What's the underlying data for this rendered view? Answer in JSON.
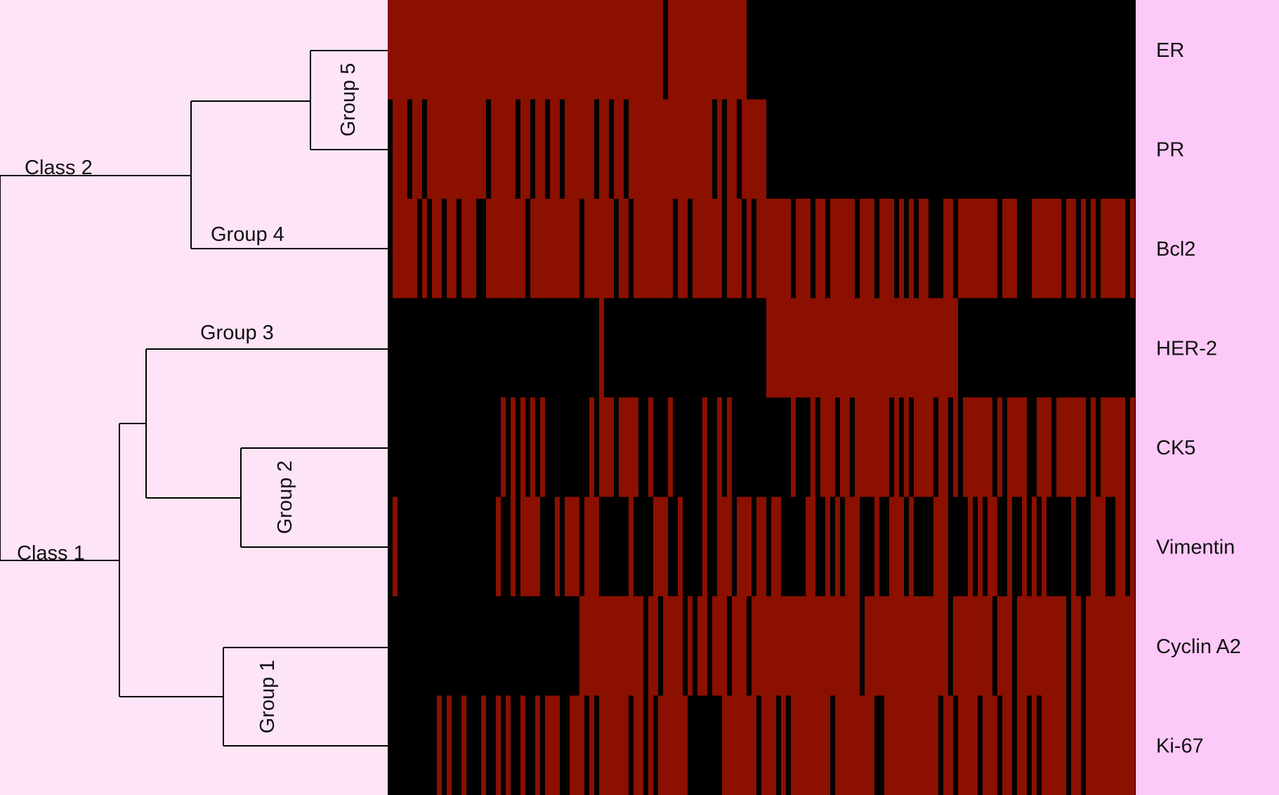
{
  "chart_data": {
    "type": "heatmap",
    "title": "",
    "xlabel": "",
    "ylabel": "",
    "rows": [
      "ER",
      "PR",
      "Bcl2",
      "HER-2",
      "CK5",
      "Vimentin",
      "Cyclin A2",
      "Ki-67"
    ],
    "n_samples": 152,
    "value_colors": {
      "0": "#000000",
      "1": "#8b1000"
    },
    "legend": "none",
    "grid": false,
    "values": [
      "11111111111111111111111111111111111111111111111111111111011111111111111110000000000000000000000000000000000000000000000000000000000000000000000000000000",
      "01110110111111111111011111011011011011111101101101111111111111111101011011111000000000000000000000000000000000000000000000000000000000000000000000000000",
      "01111101011011011100111111110111111111101111110110111111110110111111011101011111110111011011111011101110101011000110111111110111000111111011010101111101",
      "00000000000000000000000000000000000000000001000000000000000000000000000000000111111111111111111111111111111111111111000000000000000000000000000000000000",
      "00000000000000000000000101010101000000000101110111100100010000001001010000000000001000101110110111111101010111101101011111101011110011101111110101111101",
      "01000000000000000000001001011110001011101110000001000011100100001001110111011011000001100101011100010011101000011100001010110010010101000001000111001101",
      "00000000000000000000000000000000000000011111111111110110111101011011101110111111111111111111111101111111111111111101111111101110111111111101101111111111",
      "00000000001010010001001010010010111001110101111110110101111110000000111111101110101111111101111111100111111111110110111101110110110101111101101111111111"
    ],
    "dendrogram": {
      "classes": [
        "Class 1",
        "Class 2"
      ],
      "groups": [
        "Group 1",
        "Group 2",
        "Group 3",
        "Group 4",
        "Group 5"
      ]
    }
  }
}
